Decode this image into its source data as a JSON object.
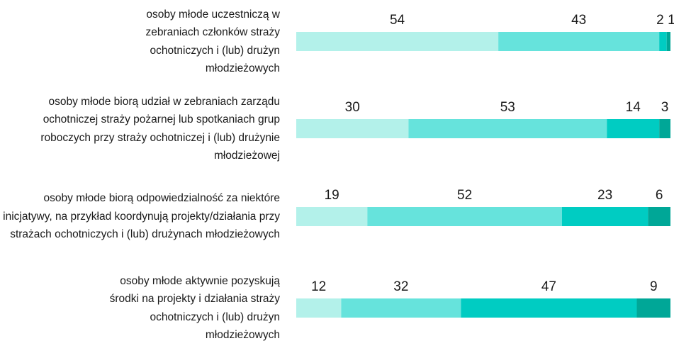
{
  "chart_data": {
    "type": "stacked-bar-horizontal",
    "categories": [
      "osoby młode uczestniczą w zebraniach członków straży ochotniczych i (lub) drużyn młodzieżowych",
      "osoby młode biorą udział w zebraniach zarządu ochotniczej straży pożarnej lub spotkaniach grup roboczych przy straży ochotniczej i (lub) drużynie młodzieżowej",
      "osoby młode biorą odpowiedzialność za niektóre inicjatywy, na przykład koordynują projekty/działania przy strażach ochotniczych i (lub) drużynach młodzieżowych",
      "osoby młode aktywnie pozyskują środki na projekty i działania straży ochotniczych i (lub) drużyn młodzieżowych"
    ],
    "series": [
      {
        "color": "#b3f1ea",
        "values": [
          54,
          30,
          19,
          12
        ]
      },
      {
        "color": "#66e3dc",
        "values": [
          43,
          53,
          52,
          32
        ]
      },
      {
        "color": "#00ccc2",
        "values": [
          2,
          14,
          23,
          47
        ]
      },
      {
        "color": "#00a797",
        "values": [
          1,
          3,
          6,
          9
        ]
      }
    ],
    "xlim": [
      0,
      100
    ]
  }
}
